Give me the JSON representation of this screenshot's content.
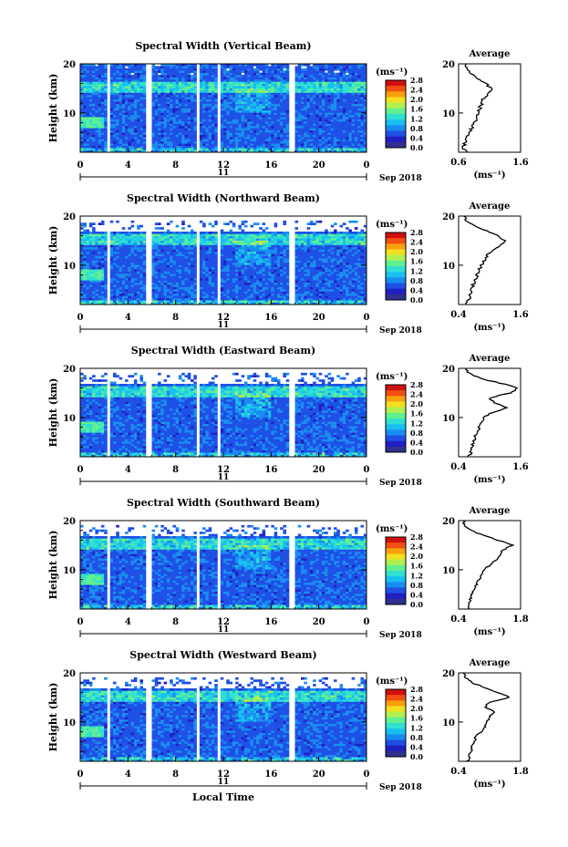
{
  "shared": {
    "xlabel": "Local Time",
    "date_label": "Sep 2018",
    "day_label": "11",
    "unit_label": "(ms⁻¹)",
    "avg_title": "Average",
    "avg_xlabel": "(ms⁻¹)",
    "ylabel": "Height (km)",
    "colormap": [
      "#303090",
      "#2020c0",
      "#1e50e6",
      "#1a8cf0",
      "#18c0f0",
      "#30e0d0",
      "#60f090",
      "#b0f050",
      "#f0e020",
      "#f8a010",
      "#f05010",
      "#d01010"
    ]
  },
  "chart_data": [
    {
      "type": "heatmap",
      "title": "Spectral Width (Vertical Beam)",
      "x_ticks": [
        "0",
        "4",
        "8",
        "12",
        "16",
        "20",
        "0"
      ],
      "y_ticks": [
        "20",
        "10"
      ],
      "xlim": [
        0,
        24
      ],
      "ylim": [
        2,
        20
      ],
      "colorbar_ticks": [
        "2.8",
        "2.4",
        "2.0",
        "1.6",
        "1.2",
        "0.8",
        "0.4",
        "0.0"
      ],
      "colorbar_range": [
        0.0,
        2.8
      ],
      "avg_x_ticks": [
        "0.6",
        "1.6"
      ],
      "avg_xlim": [
        0.6,
        1.6
      ],
      "avg_profile": {
        "height": [
          2,
          3,
          4,
          5,
          6,
          7,
          8,
          9,
          10,
          11,
          12,
          13,
          14,
          15,
          16,
          17,
          18,
          19,
          20
        ],
        "value": [
          0.72,
          0.68,
          0.7,
          0.74,
          0.76,
          0.82,
          0.86,
          0.88,
          0.9,
          0.94,
          0.98,
          1.0,
          1.1,
          1.15,
          1.02,
          0.92,
          0.8,
          0.75,
          0.72
        ]
      }
    },
    {
      "type": "heatmap",
      "title": "Spectral Width (Northward Beam)",
      "x_ticks": [
        "0",
        "4",
        "8",
        "12",
        "16",
        "20",
        "0"
      ],
      "y_ticks": [
        "20",
        "10"
      ],
      "xlim": [
        0,
        24
      ],
      "ylim": [
        2,
        20
      ],
      "colorbar_ticks": [
        "2.8",
        "2.4",
        "2.0",
        "1.6",
        "1.2",
        "0.8",
        "0.4",
        "0.0"
      ],
      "colorbar_range": [
        0.0,
        2.8
      ],
      "avg_x_ticks": [
        "0.4",
        "1.6"
      ],
      "avg_xlim": [
        0.4,
        1.6
      ],
      "avg_profile": {
        "height": [
          2,
          3,
          4,
          5,
          6,
          7,
          8,
          9,
          10,
          11,
          12,
          13,
          14,
          15,
          16,
          17,
          18,
          19,
          20
        ],
        "value": [
          0.55,
          0.6,
          0.62,
          0.64,
          0.68,
          0.72,
          0.76,
          0.8,
          0.84,
          0.9,
          0.95,
          1.05,
          1.2,
          1.3,
          1.15,
          0.95,
          0.7,
          0.55,
          0.5
        ]
      }
    },
    {
      "type": "heatmap",
      "title": "Spectral Width (Eastward Beam)",
      "x_ticks": [
        "0",
        "4",
        "8",
        "12",
        "16",
        "20",
        "0"
      ],
      "y_ticks": [
        "20",
        "10"
      ],
      "xlim": [
        0,
        24
      ],
      "ylim": [
        2,
        20
      ],
      "colorbar_ticks": [
        "2.8",
        "2.4",
        "2.0",
        "1.6",
        "1.2",
        "0.8",
        "0.4",
        "0.0"
      ],
      "colorbar_range": [
        0.0,
        2.8
      ],
      "avg_x_ticks": [
        "0.4",
        "1.6"
      ],
      "avg_xlim": [
        0.4,
        1.6
      ],
      "avg_profile": {
        "height": [
          2,
          3,
          4,
          5,
          6,
          7,
          8,
          9,
          10,
          11,
          12,
          13,
          14,
          15,
          16,
          17,
          18,
          19,
          20
        ],
        "value": [
          0.6,
          0.64,
          0.66,
          0.7,
          0.72,
          0.76,
          0.8,
          0.86,
          0.9,
          1.05,
          1.35,
          1.1,
          1.0,
          1.4,
          1.55,
          1.2,
          0.8,
          0.6,
          0.55
        ]
      }
    },
    {
      "type": "heatmap",
      "title": "Spectral Width (Southward Beam)",
      "x_ticks": [
        "0",
        "4",
        "8",
        "12",
        "16",
        "20",
        "0"
      ],
      "y_ticks": [
        "20",
        "10"
      ],
      "xlim": [
        0,
        24
      ],
      "ylim": [
        2,
        20
      ],
      "colorbar_ticks": [
        "2.8",
        "2.4",
        "2.0",
        "1.6",
        "1.2",
        "0.8",
        "0.4",
        "0.0"
      ],
      "colorbar_range": [
        0.0,
        2.8
      ],
      "avg_x_ticks": [
        "0.4",
        "1.8"
      ],
      "avg_xlim": [
        0.4,
        1.8
      ],
      "avg_profile": {
        "height": [
          2,
          3,
          4,
          5,
          6,
          7,
          8,
          9,
          10,
          11,
          12,
          13,
          14,
          15,
          16,
          17,
          18,
          19,
          20
        ],
        "value": [
          0.6,
          0.62,
          0.66,
          0.7,
          0.74,
          0.8,
          0.86,
          0.92,
          1.0,
          1.1,
          1.25,
          1.35,
          1.4,
          1.6,
          1.3,
          0.95,
          0.7,
          0.55,
          0.5
        ]
      }
    },
    {
      "type": "heatmap",
      "title": "Spectral Width (Westward Beam)",
      "x_ticks": [
        "0",
        "4",
        "8",
        "12",
        "16",
        "20",
        "0"
      ],
      "y_ticks": [
        "20",
        "10"
      ],
      "xlim": [
        0,
        24
      ],
      "ylim": [
        2,
        20
      ],
      "colorbar_ticks": [
        "2.8",
        "2.4",
        "2.0",
        "1.6",
        "1.2",
        "0.8",
        "0.4",
        "0.0"
      ],
      "colorbar_range": [
        0.0,
        2.8
      ],
      "avg_x_ticks": [
        "0.4",
        "1.8"
      ],
      "avg_xlim": [
        0.4,
        1.8
      ],
      "avg_profile": {
        "height": [
          2,
          3,
          4,
          5,
          6,
          7,
          8,
          9,
          10,
          11,
          12,
          13,
          14,
          15,
          16,
          17,
          18,
          19,
          20
        ],
        "value": [
          0.6,
          0.64,
          0.68,
          0.7,
          0.74,
          0.8,
          0.9,
          1.0,
          1.05,
          1.1,
          1.2,
          1.0,
          1.1,
          1.55,
          1.3,
          1.0,
          0.7,
          0.55,
          0.5
        ]
      }
    }
  ]
}
